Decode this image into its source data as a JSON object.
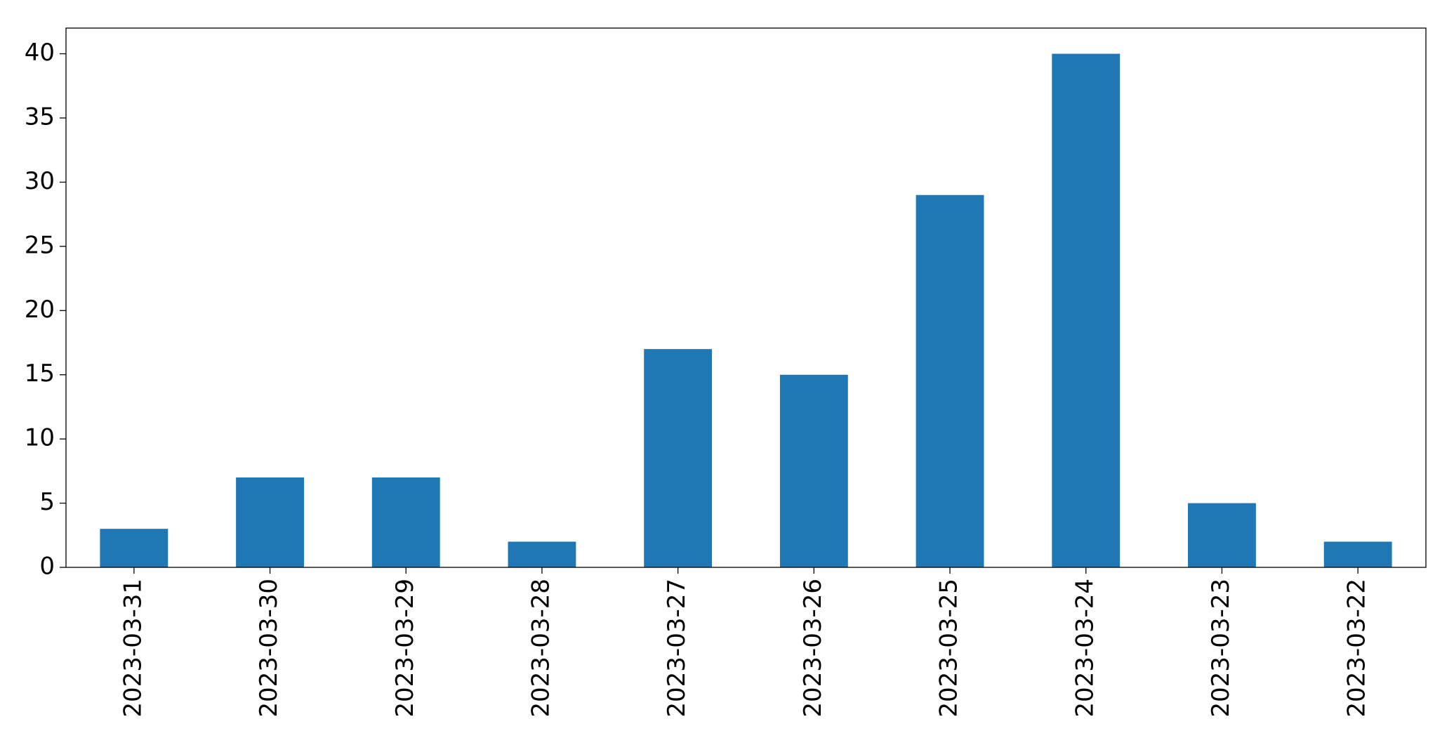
{
  "chart_data": {
    "type": "bar",
    "categories": [
      "2023-03-31",
      "2023-03-30",
      "2023-03-29",
      "2023-03-28",
      "2023-03-27",
      "2023-03-26",
      "2023-03-25",
      "2023-03-24",
      "2023-03-23",
      "2023-03-22"
    ],
    "values": [
      3,
      7,
      7,
      2,
      17,
      15,
      29,
      40,
      5,
      2
    ],
    "color": "#1f77b4",
    "ylim": [
      0,
      42
    ],
    "yticks": [
      0,
      5,
      10,
      15,
      20,
      25,
      30,
      35,
      40
    ],
    "grid": false
  }
}
